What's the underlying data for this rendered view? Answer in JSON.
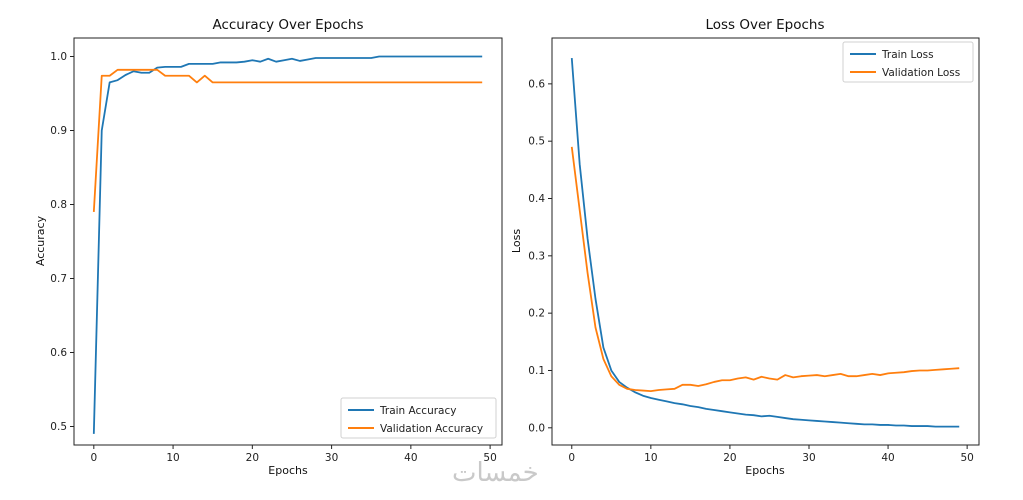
{
  "chart_data": [
    {
      "type": "line",
      "title": "Accuracy Over Epochs",
      "xlabel": "Epochs",
      "ylabel": "Accuracy",
      "xlim": [
        -2.5,
        51.5
      ],
      "ylim": [
        0.475,
        1.025
      ],
      "xticks": [
        0,
        10,
        20,
        30,
        40,
        50
      ],
      "yticks": [
        0.5,
        0.6,
        0.7,
        0.8,
        0.9,
        1.0
      ],
      "ytick_labels": [
        "0.5",
        "0.6",
        "0.7",
        "0.8",
        "0.9",
        "1.0"
      ],
      "legend_position": "lower-right",
      "grid": false,
      "x": [
        0,
        1,
        2,
        3,
        4,
        5,
        6,
        7,
        8,
        9,
        10,
        11,
        12,
        13,
        14,
        15,
        16,
        17,
        18,
        19,
        20,
        21,
        22,
        23,
        24,
        25,
        26,
        27,
        28,
        29,
        30,
        31,
        32,
        33,
        34,
        35,
        36,
        37,
        38,
        39,
        40,
        41,
        42,
        43,
        44,
        45,
        46,
        47,
        48,
        49
      ],
      "series": [
        {
          "name": "Train Accuracy",
          "color": "#1f77b4",
          "values": [
            0.49,
            0.9,
            0.965,
            0.968,
            0.975,
            0.98,
            0.978,
            0.978,
            0.985,
            0.986,
            0.986,
            0.986,
            0.99,
            0.99,
            0.99,
            0.99,
            0.992,
            0.992,
            0.992,
            0.993,
            0.995,
            0.993,
            0.997,
            0.993,
            0.995,
            0.997,
            0.994,
            0.996,
            0.998,
            0.998,
            0.998,
            0.998,
            0.998,
            0.998,
            0.998,
            0.998,
            1.0,
            1.0,
            1.0,
            1.0,
            1.0,
            1.0,
            1.0,
            1.0,
            1.0,
            1.0,
            1.0,
            1.0,
            1.0,
            1.0
          ]
        },
        {
          "name": "Validation Accuracy",
          "color": "#ff7f0e",
          "values": [
            0.79,
            0.974,
            0.974,
            0.982,
            0.982,
            0.982,
            0.982,
            0.982,
            0.982,
            0.974,
            0.974,
            0.974,
            0.974,
            0.965,
            0.974,
            0.965,
            0.965,
            0.965,
            0.965,
            0.965,
            0.965,
            0.965,
            0.965,
            0.965,
            0.965,
            0.965,
            0.965,
            0.965,
            0.965,
            0.965,
            0.965,
            0.965,
            0.965,
            0.965,
            0.965,
            0.965,
            0.965,
            0.965,
            0.965,
            0.965,
            0.965,
            0.965,
            0.965,
            0.965,
            0.965,
            0.965,
            0.965,
            0.965,
            0.965,
            0.965
          ]
        }
      ]
    },
    {
      "type": "line",
      "title": "Loss Over Epochs",
      "xlabel": "Epochs",
      "ylabel": "Loss",
      "xlim": [
        -2.5,
        51.5
      ],
      "ylim": [
        -0.03,
        0.68
      ],
      "xticks": [
        0,
        10,
        20,
        30,
        40,
        50
      ],
      "yticks": [
        0.0,
        0.1,
        0.2,
        0.3,
        0.4,
        0.5,
        0.6
      ],
      "ytick_labels": [
        "0.0",
        "0.1",
        "0.2",
        "0.3",
        "0.4",
        "0.5",
        "0.6"
      ],
      "legend_position": "upper-right",
      "grid": false,
      "x": [
        0,
        1,
        2,
        3,
        4,
        5,
        6,
        7,
        8,
        9,
        10,
        11,
        12,
        13,
        14,
        15,
        16,
        17,
        18,
        19,
        20,
        21,
        22,
        23,
        24,
        25,
        26,
        27,
        28,
        29,
        30,
        31,
        32,
        33,
        34,
        35,
        36,
        37,
        38,
        39,
        40,
        41,
        42,
        43,
        44,
        45,
        46,
        47,
        48,
        49
      ],
      "series": [
        {
          "name": "Train Loss",
          "color": "#1f77b4",
          "values": [
            0.645,
            0.46,
            0.33,
            0.225,
            0.14,
            0.1,
            0.08,
            0.07,
            0.062,
            0.056,
            0.052,
            0.049,
            0.046,
            0.043,
            0.041,
            0.038,
            0.036,
            0.033,
            0.031,
            0.029,
            0.027,
            0.025,
            0.023,
            0.022,
            0.02,
            0.021,
            0.019,
            0.017,
            0.015,
            0.014,
            0.013,
            0.012,
            0.011,
            0.01,
            0.009,
            0.008,
            0.007,
            0.006,
            0.006,
            0.005,
            0.005,
            0.004,
            0.004,
            0.003,
            0.003,
            0.003,
            0.002,
            0.002,
            0.002,
            0.002
          ]
        },
        {
          "name": "Validation Loss",
          "color": "#ff7f0e",
          "values": [
            0.49,
            0.38,
            0.27,
            0.175,
            0.12,
            0.09,
            0.075,
            0.068,
            0.066,
            0.065,
            0.064,
            0.066,
            0.067,
            0.068,
            0.075,
            0.075,
            0.073,
            0.076,
            0.08,
            0.083,
            0.083,
            0.086,
            0.088,
            0.084,
            0.089,
            0.086,
            0.084,
            0.092,
            0.088,
            0.09,
            0.091,
            0.092,
            0.09,
            0.092,
            0.094,
            0.09,
            0.09,
            0.092,
            0.094,
            0.092,
            0.095,
            0.096,
            0.097,
            0.099,
            0.1,
            0.1,
            0.101,
            0.102,
            0.103,
            0.104
          ]
        }
      ]
    }
  ],
  "watermark": "خمسات"
}
